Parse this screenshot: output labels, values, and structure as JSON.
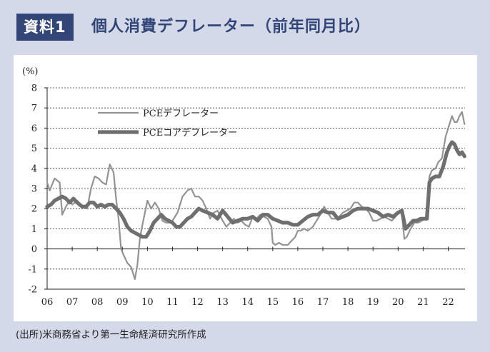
{
  "header": {
    "badge": "資料1",
    "title": "個人消費デフレーター（前年同月比）"
  },
  "source": "(出所)米商務省より第一生命経済研究所作成",
  "colors": {
    "background": "#d4d9e9",
    "header_blue": "#324577",
    "pce": "#939393",
    "core": "#6f6f6f"
  },
  "chart_data": {
    "type": "line",
    "title": "",
    "xlabel": "",
    "ylabel": "(%)",
    "ylim": [
      -2,
      8
    ],
    "yticks": [
      "8",
      "7",
      "6",
      "5",
      "4",
      "3",
      "2",
      "1",
      "0",
      "-1",
      "-2"
    ],
    "xlim": [
      2006.0,
      2022.67
    ],
    "xticks": [
      "06",
      "07",
      "08",
      "09",
      "10",
      "11",
      "12",
      "13",
      "14",
      "15",
      "16",
      "17",
      "18",
      "19",
      "20",
      "21",
      "22"
    ],
    "grid": "horizontal-dashed",
    "legend": "upper-left",
    "series": [
      {
        "name": "PCEデフレーター",
        "x": [
          2006.0,
          2006.1,
          2006.3,
          2006.5,
          2006.6,
          2006.75,
          2006.9,
          2007.0,
          2007.2,
          2007.4,
          2007.6,
          2007.75,
          2007.9,
          2008.05,
          2008.2,
          2008.35,
          2008.5,
          2008.65,
          2008.75,
          2008.85,
          2008.95,
          2009.05,
          2009.2,
          2009.35,
          2009.5,
          2009.6,
          2009.7,
          2009.8,
          2009.9,
          2010.0,
          2010.15,
          2010.3,
          2010.45,
          2010.6,
          2010.75,
          2010.9,
          2011.0,
          2011.2,
          2011.4,
          2011.6,
          2011.75,
          2011.9,
          2012.05,
          2012.2,
          2012.35,
          2012.5,
          2012.65,
          2012.8,
          2013.0,
          2013.15,
          2013.3,
          2013.45,
          2013.6,
          2013.75,
          2013.9,
          2014.05,
          2014.2,
          2014.35,
          2014.5,
          2014.65,
          2014.8,
          2014.95,
          2015.0,
          2015.1,
          2015.25,
          2015.4,
          2015.6,
          2015.75,
          2015.9,
          2016.0,
          2016.1,
          2016.25,
          2016.4,
          2016.6,
          2016.75,
          2016.9,
          2017.05,
          2017.2,
          2017.35,
          2017.5,
          2017.65,
          2017.8,
          2017.95,
          2018.1,
          2018.25,
          2018.4,
          2018.55,
          2018.7,
          2018.85,
          2019.0,
          2019.15,
          2019.3,
          2019.45,
          2019.6,
          2019.75,
          2019.9,
          2020.05,
          2020.15,
          2020.25,
          2020.35,
          2020.5,
          2020.65,
          2020.8,
          2020.95,
          2021.1,
          2021.25,
          2021.35,
          2021.5,
          2021.6,
          2021.75,
          2021.9,
          2022.0,
          2022.15,
          2022.25,
          2022.35,
          2022.45,
          2022.55,
          2022.65
        ],
        "y": [
          3.3,
          2.9,
          3.5,
          3.3,
          1.7,
          2.1,
          2.4,
          2.2,
          2.4,
          2.1,
          2.0,
          3.0,
          3.6,
          3.5,
          3.3,
          3.2,
          4.2,
          3.8,
          2.5,
          1.5,
          0.0,
          -0.3,
          -0.7,
          -0.9,
          -1.5,
          -0.8,
          0.5,
          1.2,
          1.8,
          2.4,
          2.0,
          2.3,
          2.0,
          1.4,
          1.3,
          1.3,
          1.4,
          1.8,
          2.6,
          2.9,
          3.0,
          2.6,
          2.6,
          2.4,
          2.0,
          1.5,
          1.8,
          1.9,
          1.4,
          1.1,
          1.3,
          1.5,
          1.3,
          1.4,
          1.2,
          1.1,
          1.6,
          1.5,
          1.7,
          1.6,
          1.5,
          1.1,
          0.3,
          0.2,
          0.3,
          0.2,
          0.2,
          0.4,
          0.6,
          0.9,
          0.9,
          1.0,
          0.9,
          1.1,
          1.4,
          1.7,
          2.1,
          1.8,
          1.5,
          1.5,
          1.6,
          1.8,
          1.9,
          2.0,
          2.3,
          2.3,
          2.1,
          2.0,
          1.8,
          1.4,
          1.4,
          1.5,
          1.6,
          1.5,
          1.4,
          1.6,
          1.9,
          1.7,
          0.5,
          0.6,
          1.0,
          1.3,
          1.3,
          1.4,
          1.5,
          3.6,
          3.9,
          4.0,
          4.3,
          4.5,
          5.6,
          6.0,
          6.6,
          6.3,
          6.3,
          6.6,
          6.8,
          6.2
        ]
      },
      {
        "name": "PCEコアデフレーター",
        "x": [
          2006.0,
          2006.15,
          2006.3,
          2006.45,
          2006.6,
          2006.75,
          2006.9,
          2007.05,
          2007.2,
          2007.4,
          2007.55,
          2007.7,
          2007.85,
          2008.0,
          2008.15,
          2008.3,
          2008.45,
          2008.6,
          2008.75,
          2008.9,
          2009.05,
          2009.2,
          2009.35,
          2009.5,
          2009.65,
          2009.8,
          2009.95,
          2010.1,
          2010.25,
          2010.4,
          2010.55,
          2010.7,
          2010.85,
          2011.0,
          2011.15,
          2011.3,
          2011.45,
          2011.6,
          2011.75,
          2011.9,
          2012.05,
          2012.2,
          2012.4,
          2012.6,
          2012.8,
          2013.0,
          2013.2,
          2013.4,
          2013.6,
          2013.8,
          2014.0,
          2014.2,
          2014.4,
          2014.6,
          2014.8,
          2015.0,
          2015.2,
          2015.4,
          2015.6,
          2015.8,
          2016.0,
          2016.2,
          2016.4,
          2016.6,
          2016.8,
          2017.0,
          2017.2,
          2017.4,
          2017.6,
          2017.8,
          2018.0,
          2018.2,
          2018.4,
          2018.6,
          2018.8,
          2019.0,
          2019.2,
          2019.4,
          2019.6,
          2019.8,
          2020.0,
          2020.15,
          2020.3,
          2020.45,
          2020.6,
          2020.75,
          2020.9,
          2021.05,
          2021.15,
          2021.25,
          2021.35,
          2021.5,
          2021.65,
          2021.8,
          2021.95,
          2022.05,
          2022.15,
          2022.25,
          2022.35,
          2022.45,
          2022.55,
          2022.65
        ],
        "y": [
          2.1,
          2.2,
          2.4,
          2.5,
          2.6,
          2.5,
          2.3,
          2.5,
          2.3,
          2.1,
          2.1,
          2.3,
          2.3,
          2.1,
          2.2,
          2.1,
          2.2,
          2.2,
          2.0,
          1.8,
          1.5,
          1.1,
          0.9,
          0.8,
          0.7,
          0.6,
          0.6,
          0.9,
          1.3,
          1.5,
          1.7,
          1.5,
          1.4,
          1.3,
          1.1,
          1.1,
          1.3,
          1.5,
          1.6,
          1.8,
          2.0,
          1.9,
          1.8,
          1.7,
          1.5,
          1.9,
          1.6,
          1.3,
          1.4,
          1.5,
          1.5,
          1.6,
          1.4,
          1.7,
          1.7,
          1.5,
          1.4,
          1.3,
          1.3,
          1.2,
          1.2,
          1.4,
          1.6,
          1.7,
          1.7,
          1.9,
          1.8,
          1.8,
          1.5,
          1.6,
          1.7,
          1.9,
          2.0,
          2.0,
          2.0,
          1.9,
          1.8,
          1.6,
          1.7,
          1.6,
          1.8,
          1.9,
          1.0,
          1.2,
          1.4,
          1.4,
          1.5,
          1.5,
          1.5,
          3.3,
          3.5,
          3.6,
          3.6,
          4.1,
          4.8,
          5.1,
          5.3,
          5.2,
          4.9,
          4.7,
          4.8,
          4.6
        ]
      }
    ]
  }
}
